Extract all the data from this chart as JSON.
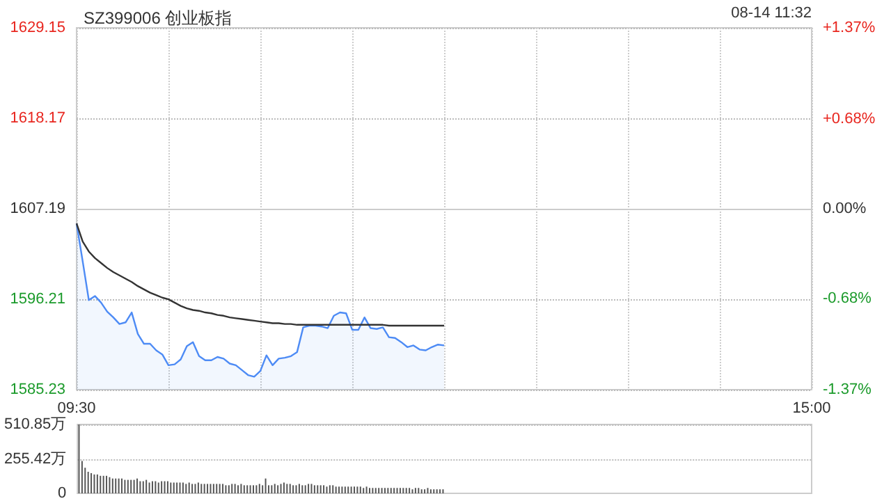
{
  "chart_data": [
    {
      "type": "line",
      "title": "SZ399006 创业板指",
      "annotations": [
        "08-14 11:32"
      ],
      "categories": [
        "09:30",
        null,
        null,
        null,
        null,
        null,
        null,
        null,
        null,
        null,
        null,
        null,
        null,
        null,
        null,
        null,
        null,
        null,
        null,
        null,
        null,
        null,
        null,
        null,
        null,
        null,
        null,
        null,
        null,
        null,
        null,
        null,
        null,
        null,
        null,
        null,
        null,
        null,
        null,
        null,
        null,
        null,
        null,
        null,
        null,
        null,
        null,
        null,
        null,
        null,
        null,
        null,
        null,
        null,
        null,
        null,
        null,
        null,
        null,
        null,
        null,
        null,
        null,
        null,
        null,
        null,
        null,
        null,
        null,
        null,
        null,
        null,
        null,
        null,
        null,
        null,
        null,
        null,
        null,
        null,
        null,
        null,
        null,
        null,
        null,
        null,
        null,
        null,
        null,
        null,
        null,
        null,
        null,
        null,
        null,
        null,
        null,
        null,
        null,
        null,
        null,
        null,
        null,
        null,
        null,
        null,
        null,
        null,
        null,
        null,
        null,
        null,
        null,
        null,
        null,
        null,
        null,
        null,
        null,
        null,
        "15:00"
      ],
      "ylim": [
        1585.23,
        1629.15
      ],
      "yticks": [
        1585.23,
        1596.21,
        1607.19,
        1618.17,
        1629.15
      ],
      "y2lim": [
        -1.37,
        1.37
      ],
      "y2ticks": [
        {
          "value": -1.37,
          "label": "-1.37%"
        },
        {
          "value": -0.68,
          "label": "-0.68%"
        },
        {
          "value": 0,
          "label": "0.00%"
        },
        {
          "value": 0.68,
          "label": "+0.68%"
        },
        {
          "value": 1.37,
          "label": "+1.37%"
        }
      ],
      "grid": true,
      "marker": "none",
      "series": [
        {
          "type": "area",
          "color": "#4d8bf5",
          "values": [
            1605.4,
            1600.8,
            1596.1,
            1596.6,
            1595.8,
            1594.7,
            1594.0,
            1593.2,
            1593.4,
            1594.6,
            1592.0,
            1590.8,
            1590.8,
            1590.0,
            1589.5,
            1588.2,
            1588.3,
            1588.9,
            1590.5,
            1591.0,
            1589.3,
            1588.8,
            1588.8,
            1589.2,
            1589.0,
            1588.4,
            1588.2,
            1587.6,
            1587.0,
            1586.8,
            1587.5,
            1589.4,
            1588.2,
            1589.0,
            1589.1,
            1589.3,
            1589.8,
            1592.8,
            1593.0,
            1593.0,
            1592.9,
            1592.7,
            1594.2,
            1594.6,
            1594.5,
            1592.5,
            1592.5,
            1594.0,
            1592.7,
            1592.6,
            1592.8,
            1591.6,
            1591.5,
            1591.0,
            1590.4,
            1590.6,
            1590.1,
            1590.0,
            1590.4,
            1590.7,
            1590.6,
            null,
            null,
            null,
            null,
            null,
            null,
            null,
            null,
            null,
            null,
            null,
            null,
            null,
            null,
            null,
            null,
            null,
            null,
            null,
            null,
            null,
            null,
            null,
            null,
            null,
            null,
            null,
            null,
            null,
            null,
            null,
            null,
            null,
            null,
            null,
            null,
            null,
            null,
            null,
            null,
            null,
            null,
            null,
            null,
            null,
            null,
            null,
            null,
            null,
            null,
            null,
            null,
            null,
            null,
            null,
            null,
            null,
            null,
            null,
            null
          ]
        },
        {
          "color": "#333333",
          "values": [
            1605.4,
            1603.2,
            1602.0,
            1601.2,
            1600.6,
            1600.0,
            1599.5,
            1599.1,
            1598.7,
            1598.3,
            1597.8,
            1597.4,
            1597.0,
            1596.7,
            1596.4,
            1596.2,
            1595.8,
            1595.4,
            1595.1,
            1594.9,
            1594.8,
            1594.6,
            1594.5,
            1594.3,
            1594.2,
            1594.0,
            1593.9,
            1593.8,
            1593.7,
            1593.6,
            1593.5,
            1593.4,
            1593.3,
            1593.3,
            1593.2,
            1593.2,
            1593.1,
            1593.1,
            1593.1,
            1593.1,
            1593.1,
            1593.1,
            1593.1,
            1593.1,
            1593.1,
            1593.1,
            1593.1,
            1593.1,
            1593.1,
            1593.1,
            1593.1,
            1593.0,
            1593.0,
            1593.0,
            1593.0,
            1593.0,
            1593.0,
            1593.0,
            1593.0,
            1593.0,
            1593.0,
            null,
            null,
            null,
            null,
            null,
            null,
            null,
            null,
            null,
            null,
            null,
            null,
            null,
            null,
            null,
            null,
            null,
            null,
            null,
            null,
            null,
            null,
            null,
            null,
            null,
            null,
            null,
            null,
            null,
            null,
            null,
            null,
            null,
            null,
            null,
            null,
            null,
            null,
            null,
            null,
            null,
            null,
            null,
            null,
            null,
            null,
            null,
            null,
            null,
            null,
            null,
            null,
            null,
            null,
            null,
            null,
            null,
            null,
            null,
            null
          ]
        }
      ]
    },
    {
      "type": "bar",
      "ylim": [
        0,
        510.85
      ],
      "yticks": [
        0,
        {
          "value": 255.42,
          "label": "255.42万"
        },
        {
          "value": 510.85,
          "label": "510.85万"
        }
      ],
      "grid": "y",
      "tick_labels": "y",
      "color": "#555555",
      "categories": [
        null,
        null,
        null,
        null,
        null,
        null,
        null,
        null,
        null,
        null,
        null,
        null,
        null,
        null,
        null,
        null,
        null,
        null,
        null,
        null,
        null,
        null,
        null,
        null,
        null,
        null,
        null,
        null,
        null,
        null,
        null,
        null,
        null,
        null,
        null,
        null,
        null,
        null,
        null,
        null,
        null,
        null,
        null,
        null,
        null,
        null,
        null,
        null,
        null,
        null,
        null,
        null,
        null,
        null,
        null,
        null,
        null,
        null,
        null,
        null,
        null,
        null,
        null,
        null,
        null,
        null,
        null,
        null,
        null,
        null,
        null,
        null,
        null,
        null,
        null,
        null,
        null,
        null,
        null,
        null,
        null,
        null,
        null,
        null,
        null,
        null,
        null,
        null,
        null,
        null,
        null,
        null,
        null,
        null,
        null,
        null,
        null,
        null,
        null,
        null,
        null,
        null,
        null,
        null,
        null,
        null,
        null,
        null,
        null,
        null,
        null,
        null,
        null,
        null,
        null,
        null,
        null,
        null,
        null,
        null,
        null,
        null,
        null,
        null,
        null,
        null,
        null,
        null,
        null,
        null,
        null,
        null,
        null,
        null,
        null,
        null,
        null,
        null,
        null,
        null,
        null,
        null,
        null,
        null,
        null,
        null,
        null,
        null,
        null,
        null,
        null,
        null,
        null,
        null,
        null,
        null,
        null,
        null,
        null,
        null,
        null,
        null,
        null,
        null,
        null,
        null,
        null,
        null,
        null,
        null,
        null,
        null,
        null,
        null,
        null,
        null,
        null,
        null,
        null,
        null,
        null,
        null,
        null,
        null,
        null,
        null,
        null,
        null,
        null,
        null,
        null,
        null,
        null,
        null,
        null,
        null,
        null,
        null,
        null,
        null,
        null,
        null,
        null,
        null,
        null,
        null,
        null,
        null,
        null,
        null,
        null,
        null,
        null,
        null,
        null,
        null,
        null,
        null,
        null,
        null,
        null,
        null,
        null,
        null,
        null,
        null,
        null,
        null,
        null,
        null,
        null,
        null,
        null,
        null,
        null,
        null,
        null,
        null,
        null,
        null
      ],
      "values": [
        510,
        240,
        190,
        160,
        150,
        140,
        140,
        130,
        130,
        130,
        120,
        110,
        110,
        110,
        110,
        100,
        100,
        100,
        100,
        110,
        90,
        90,
        100,
        80,
        90,
        90,
        80,
        90,
        90,
        90,
        80,
        80,
        80,
        80,
        80,
        70,
        80,
        70,
        70,
        80,
        70,
        70,
        70,
        70,
        70,
        70,
        70,
        70,
        60,
        60,
        70,
        70,
        60,
        70,
        60,
        60,
        60,
        60,
        60,
        70,
        60,
        110,
        60,
        60,
        70,
        60,
        70,
        80,
        70,
        70,
        60,
        60,
        70,
        60,
        60,
        70,
        70,
        60,
        60,
        60,
        60,
        50,
        60,
        60,
        50,
        50,
        50,
        50,
        50,
        50,
        50,
        50,
        50,
        40,
        50,
        40,
        40,
        40,
        40,
        40,
        40,
        40,
        40,
        40,
        40,
        40,
        40,
        40,
        40,
        30,
        40,
        40,
        30,
        30,
        40,
        30,
        30,
        30,
        30,
        30,
        null,
        null,
        null,
        null,
        null,
        null,
        null,
        null,
        null,
        null,
        null,
        null,
        null,
        null,
        null,
        null,
        null,
        null,
        null,
        null,
        null,
        null,
        null,
        null,
        null,
        null,
        null,
        null,
        null,
        null,
        null,
        null,
        null,
        null,
        null,
        null,
        null,
        null,
        null,
        null,
        null,
        null,
        null,
        null,
        null,
        null,
        null,
        null,
        null,
        null,
        null,
        null,
        null,
        null,
        null,
        null,
        null,
        null,
        null,
        null,
        null,
        null,
        null,
        null,
        null,
        null,
        null,
        null,
        null,
        null,
        null,
        null,
        null,
        null,
        null,
        null,
        null,
        null,
        null,
        null,
        null,
        null,
        null,
        null,
        null,
        null,
        null,
        null,
        null,
        null,
        null,
        null,
        null,
        null,
        null,
        null,
        null,
        null,
        null,
        null,
        null,
        null,
        null,
        null,
        null,
        null,
        null,
        null,
        null,
        null,
        null,
        null,
        null,
        null,
        null,
        null,
        null,
        null,
        null,
        null
      ]
    }
  ]
}
